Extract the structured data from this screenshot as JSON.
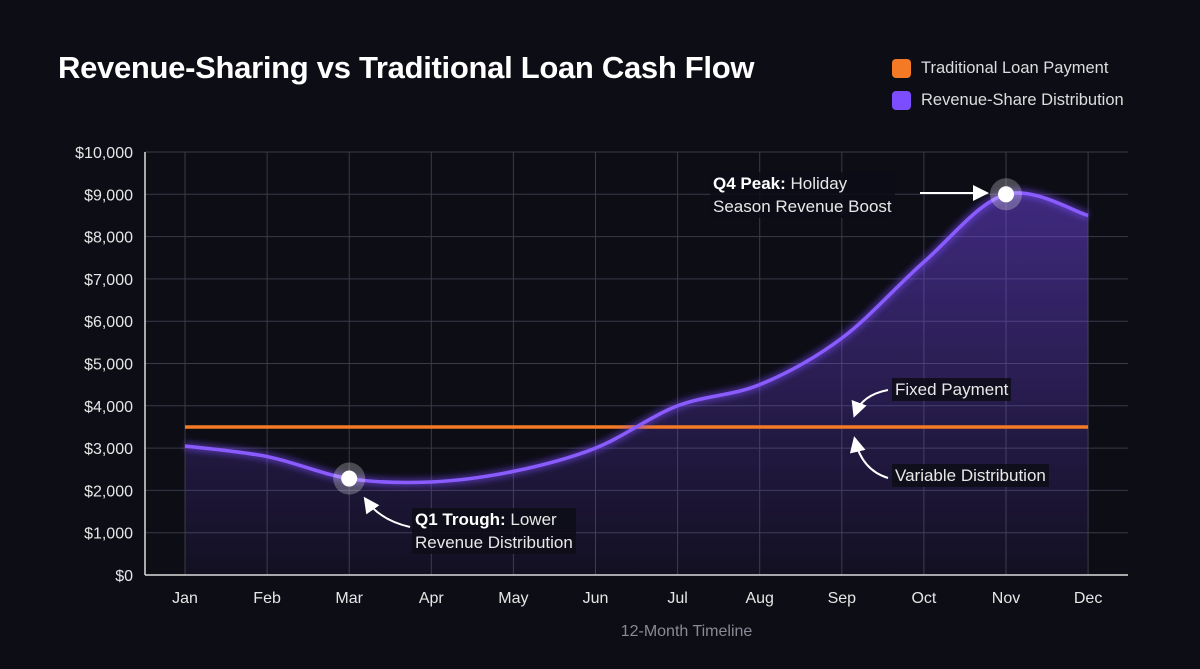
{
  "title": "Revenue-Sharing vs Traditional Loan Cash Flow",
  "legend": [
    {
      "label": "Traditional Loan Payment",
      "color": "#f47a25"
    },
    {
      "label": "Revenue-Share Distribution",
      "color": "#7c4dff"
    }
  ],
  "annotations": {
    "peak_bold": "Q4 Peak:",
    "peak_rest": " Holiday",
    "peak_line2": "Season Revenue Boost",
    "trough_bold": "Q1 Trough:",
    "trough_rest": " Lower",
    "trough_line2": "Revenue Distribution",
    "fixed": "Fixed Payment",
    "variable": "Variable Distribution"
  },
  "chart_data": {
    "type": "line",
    "title": "Revenue-Sharing vs Traditional Loan Cash Flow",
    "xlabel": "12-Month Timeline",
    "ylabel": "",
    "categories": [
      "Jan",
      "Feb",
      "Mar",
      "Apr",
      "May",
      "Jun",
      "Jul",
      "Aug",
      "Sep",
      "Oct",
      "Nov",
      "Dec"
    ],
    "ylim": [
      0,
      10000
    ],
    "yticks": [
      "$0",
      "$1,000",
      "$2,000",
      "$3,000",
      "$4,000",
      "$5,000",
      "$6,000",
      "$7,000",
      "$8,000",
      "$9,000",
      "$10,000"
    ],
    "grid": true,
    "legend_position": "top-right",
    "series": [
      {
        "name": "Traditional Loan Payment",
        "values": [
          3500,
          3500,
          3500,
          3500,
          3500,
          3500,
          3500,
          3500,
          3500,
          3500,
          3500,
          3500
        ]
      },
      {
        "name": "Revenue-Share Distribution",
        "values": [
          3050,
          2800,
          2280,
          2200,
          2450,
          3000,
          4000,
          4500,
          5600,
          7400,
          9000,
          8500
        ]
      }
    ],
    "highlight_points": [
      {
        "category": "Mar",
        "value": 2280
      },
      {
        "category": "Nov",
        "value": 9000
      }
    ]
  }
}
